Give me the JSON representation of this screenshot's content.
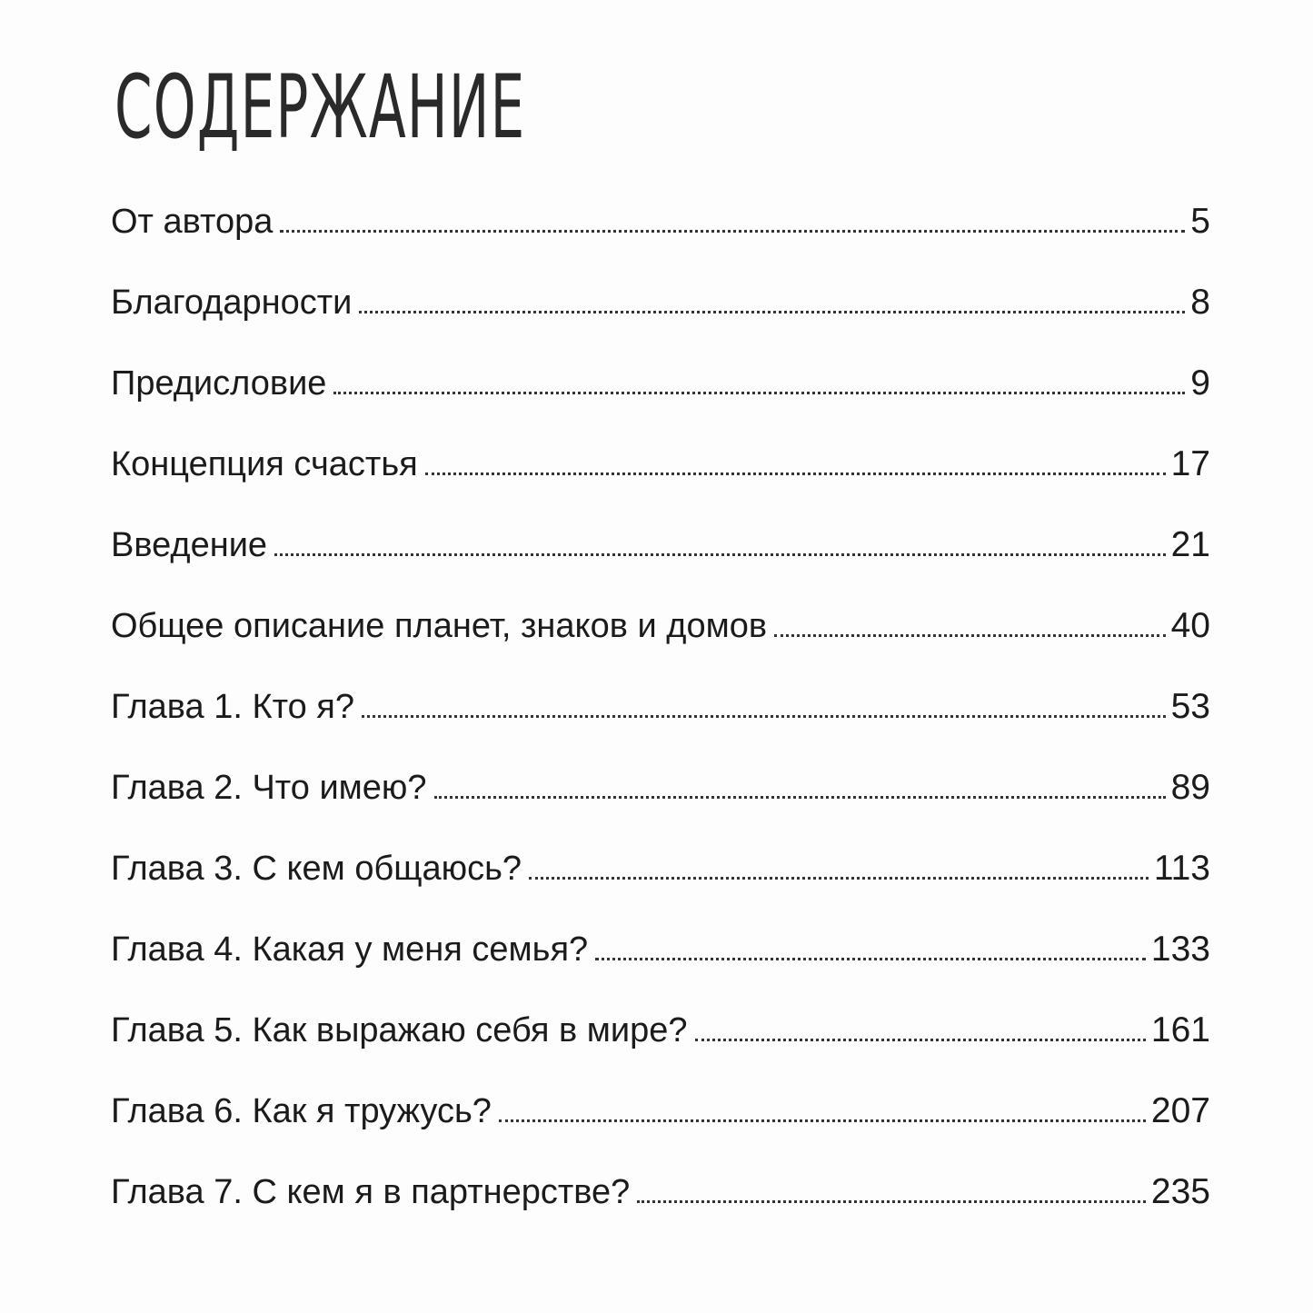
{
  "title": "СОДЕРЖАНИЕ",
  "entries": [
    {
      "label": "От автора",
      "page": "5"
    },
    {
      "label": "Благодарности",
      "page": "8"
    },
    {
      "label": "Предисловие",
      "page": "9"
    },
    {
      "label": "Концепция счастья",
      "page": "17"
    },
    {
      "label": "Введение",
      "page": "21"
    },
    {
      "label": "Общее описание планет, знаков и домов",
      "page": "40"
    },
    {
      "label": "Глава 1. Кто я?",
      "page": "53"
    },
    {
      "label": "Глава 2. Что имею?",
      "page": "89"
    },
    {
      "label": "Глава 3. С кем общаюсь?",
      "page": "113"
    },
    {
      "label": "Глава 4. Какая у меня семья?",
      "page": "133"
    },
    {
      "label": "Глава 5. Как выражаю себя в мире?",
      "page": "161"
    },
    {
      "label": "Глава 6. Как я тружусь?",
      "page": "207"
    },
    {
      "label": "Глава 7. С кем я в партнерстве?",
      "page": "235"
    }
  ]
}
